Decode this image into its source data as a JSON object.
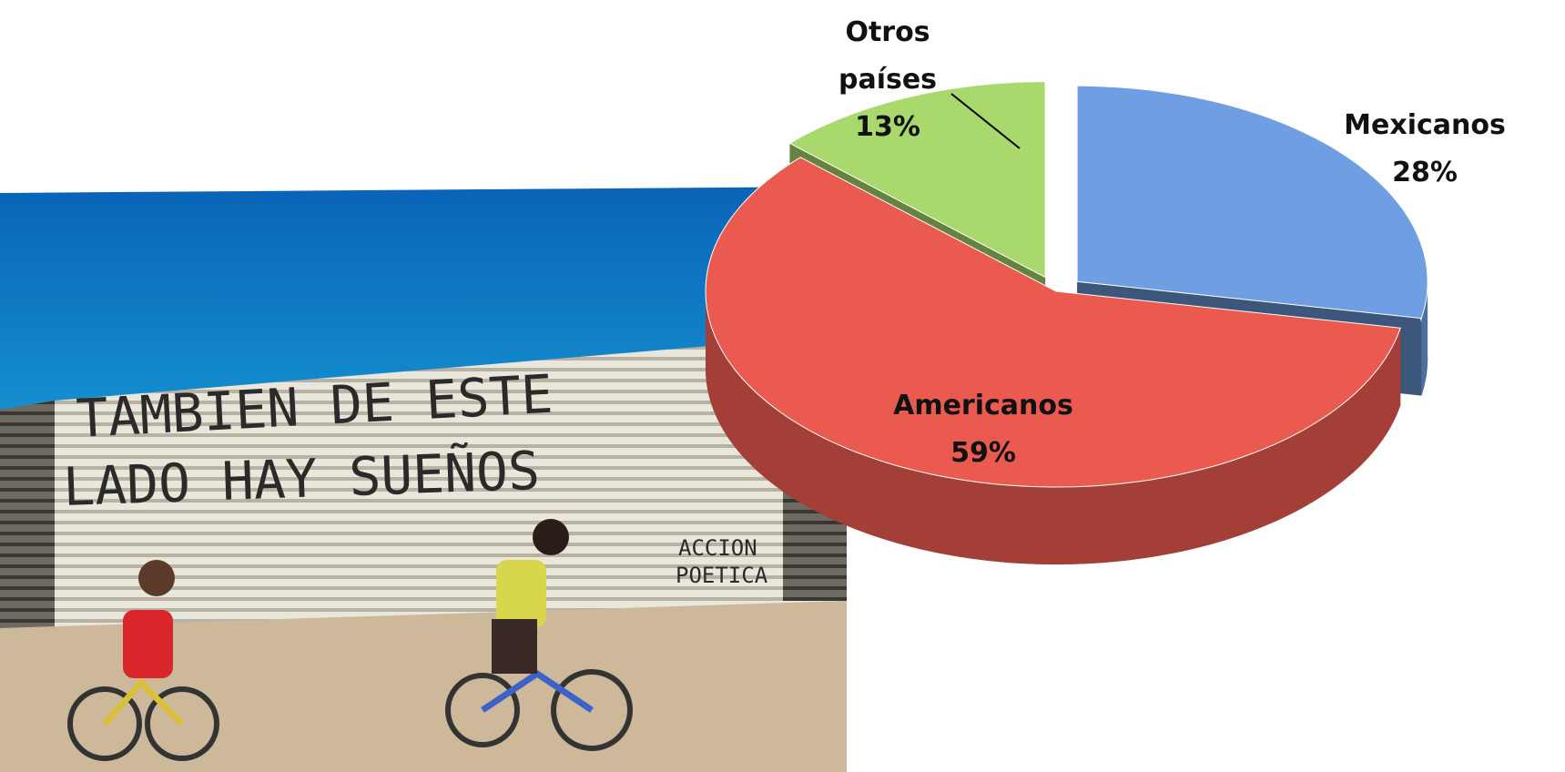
{
  "chart_data": {
    "type": "pie",
    "three_d": true,
    "categories": [
      "Mexicanos",
      "Americanos",
      "Otros países"
    ],
    "values": [
      28,
      59,
      13
    ],
    "value_labels": [
      "28%",
      "59%",
      "13%"
    ],
    "colors": [
      "#6f9fe2",
      "#ea5a4f",
      "#a9d96c"
    ],
    "exploded": [
      true,
      false,
      true
    ]
  },
  "photo": {
    "wall_text": [
      "TAMBIEN DE ESTE",
      "LADO HAY SUEÑOS",
      "ACCION",
      "POETICA"
    ]
  }
}
